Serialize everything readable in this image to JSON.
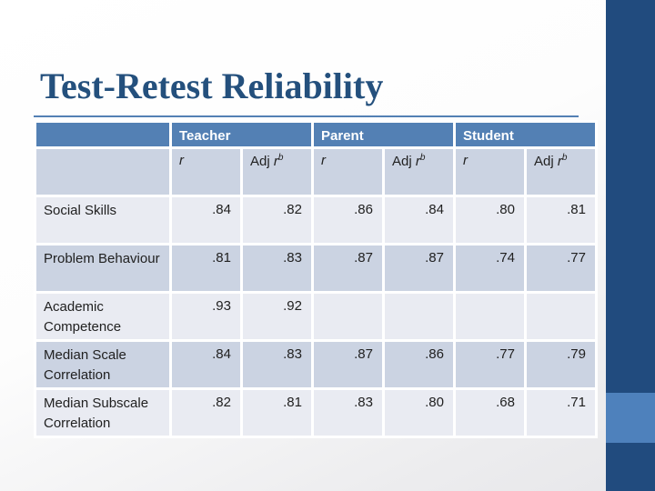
{
  "slide": {
    "title": "Test-Retest Reliability"
  },
  "colors": {
    "header_blue": "#5380b4",
    "band_dark": "#cbd3e2",
    "band_light": "#e9ebf2",
    "sidebar_dark": "#214b7e",
    "sidebar_accent": "#4e81bc",
    "title_color": "#24507d"
  },
  "table": {
    "groups": [
      {
        "label": "Teacher"
      },
      {
        "label": "Parent"
      },
      {
        "label": "Student"
      }
    ],
    "subheader": {
      "r": "r",
      "adj": "Adj ",
      "adj_r": "r",
      "adj_sup": "b"
    },
    "rows": [
      {
        "label": "Social Skills",
        "values": [
          ".84",
          ".82",
          ".86",
          ".84",
          ".80",
          ".81"
        ]
      },
      {
        "label": "Problem Behaviour",
        "values": [
          ".81",
          ".83",
          ".87",
          ".87",
          ".74",
          ".77"
        ]
      },
      {
        "label": "Academic Competence",
        "values": [
          ".93",
          ".92",
          "",
          "",
          "",
          ""
        ]
      },
      {
        "label": "Median Scale Correlation",
        "values": [
          ".84",
          ".83",
          ".87",
          ".86",
          ".77",
          ".79"
        ]
      },
      {
        "label": "Median Subscale Correlation",
        "values": [
          ".82",
          ".81",
          ".83",
          ".80",
          ".68",
          ".71"
        ]
      }
    ]
  }
}
